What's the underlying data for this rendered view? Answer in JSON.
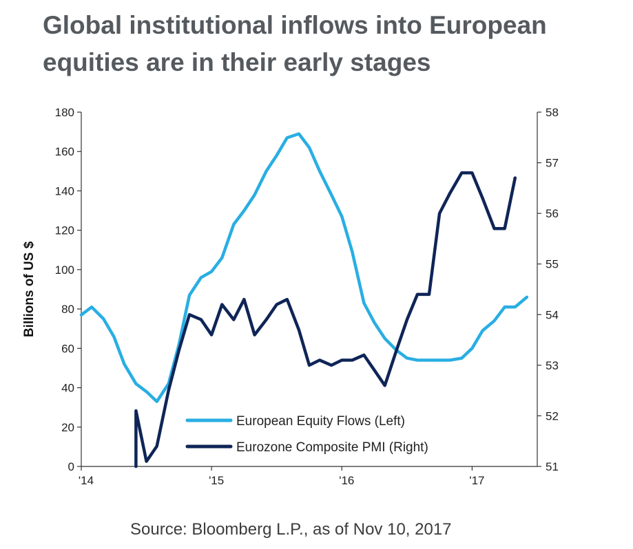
{
  "title_lines": [
    "Global institutional inflows into European",
    "equities are in their early stages"
  ],
  "source": "Source: Bloomberg L.P., as of Nov 10, 2017",
  "colors": {
    "flows": "#29aee3",
    "pmi": "#0f2557",
    "axis": "#333333",
    "title": "#555a5f"
  },
  "chart_data": {
    "type": "line",
    "title": "Global institutional inflows into European equities are in their early stages",
    "xlabel": "",
    "ylabel": "Billions of US $",
    "y2label": "",
    "xlim": [
      2014.0,
      2017.5
    ],
    "ylim": [
      0,
      180
    ],
    "y2lim": [
      51,
      58
    ],
    "x_ticks": [
      {
        "value": 2014,
        "label": "'14"
      },
      {
        "value": 2015,
        "label": "'15"
      },
      {
        "value": 2016,
        "label": "'16"
      },
      {
        "value": 2017,
        "label": "'17"
      }
    ],
    "y_ticks": [
      0,
      20,
      40,
      60,
      80,
      100,
      120,
      140,
      160,
      180
    ],
    "y2_ticks": [
      51,
      52,
      53,
      54,
      55,
      56,
      57,
      58
    ],
    "grid": false,
    "legend": "bottom-center",
    "series": [
      {
        "name": "European Equity Flows (Left)",
        "axis": "left",
        "points": [
          [
            2014.0,
            77
          ],
          [
            2014.08,
            81
          ],
          [
            2014.17,
            75
          ],
          [
            2014.25,
            66
          ],
          [
            2014.33,
            52
          ],
          [
            2014.42,
            42
          ],
          [
            2014.5,
            38
          ],
          [
            2014.58,
            33
          ],
          [
            2014.67,
            42
          ],
          [
            2014.75,
            62
          ],
          [
            2014.83,
            87
          ],
          [
            2014.92,
            96
          ],
          [
            2015.0,
            99
          ],
          [
            2015.08,
            106
          ],
          [
            2015.17,
            123
          ],
          [
            2015.25,
            130
          ],
          [
            2015.33,
            138
          ],
          [
            2015.42,
            150
          ],
          [
            2015.5,
            158
          ],
          [
            2015.58,
            167
          ],
          [
            2015.67,
            169
          ],
          [
            2015.75,
            162
          ],
          [
            2015.83,
            150
          ],
          [
            2015.92,
            138
          ],
          [
            2016.0,
            127
          ],
          [
            2016.08,
            109
          ],
          [
            2016.17,
            83
          ],
          [
            2016.25,
            73
          ],
          [
            2016.33,
            65
          ],
          [
            2016.42,
            59
          ],
          [
            2016.5,
            55
          ],
          [
            2016.58,
            54
          ],
          [
            2016.67,
            54
          ],
          [
            2016.75,
            54
          ],
          [
            2016.83,
            54
          ],
          [
            2016.92,
            55
          ],
          [
            2017.0,
            60
          ],
          [
            2017.08,
            69
          ],
          [
            2017.17,
            74
          ],
          [
            2017.25,
            81
          ],
          [
            2017.33,
            81
          ],
          [
            2017.42,
            86
          ]
        ]
      },
      {
        "name": "Eurozone Composite PMI (Right)",
        "axis": "right",
        "points": [
          [
            2014.42,
            51.0
          ],
          [
            2014.42,
            52.1
          ],
          [
            2014.5,
            51.1
          ],
          [
            2014.58,
            51.4
          ],
          [
            2014.67,
            52.5
          ],
          [
            2014.75,
            53.3
          ],
          [
            2014.83,
            54.0
          ],
          [
            2014.92,
            53.9
          ],
          [
            2015.0,
            53.6
          ],
          [
            2015.08,
            54.2
          ],
          [
            2015.17,
            53.9
          ],
          [
            2015.25,
            54.3
          ],
          [
            2015.33,
            53.6
          ],
          [
            2015.42,
            53.9
          ],
          [
            2015.5,
            54.2
          ],
          [
            2015.58,
            54.3
          ],
          [
            2015.67,
            53.7
          ],
          [
            2015.75,
            53.0
          ],
          [
            2015.83,
            53.1
          ],
          [
            2015.92,
            53.0
          ],
          [
            2016.0,
            53.1
          ],
          [
            2016.08,
            53.1
          ],
          [
            2016.17,
            53.2
          ],
          [
            2016.25,
            52.9
          ],
          [
            2016.33,
            52.6
          ],
          [
            2016.42,
            53.3
          ],
          [
            2016.5,
            53.9
          ],
          [
            2016.58,
            54.4
          ],
          [
            2016.67,
            54.4
          ],
          [
            2016.75,
            56.0
          ],
          [
            2016.83,
            56.4
          ],
          [
            2016.92,
            56.8
          ],
          [
            2017.0,
            56.8
          ],
          [
            2017.08,
            56.3
          ],
          [
            2017.17,
            55.7
          ],
          [
            2017.25,
            55.7
          ],
          [
            2017.33,
            56.7
          ]
        ]
      }
    ]
  }
}
